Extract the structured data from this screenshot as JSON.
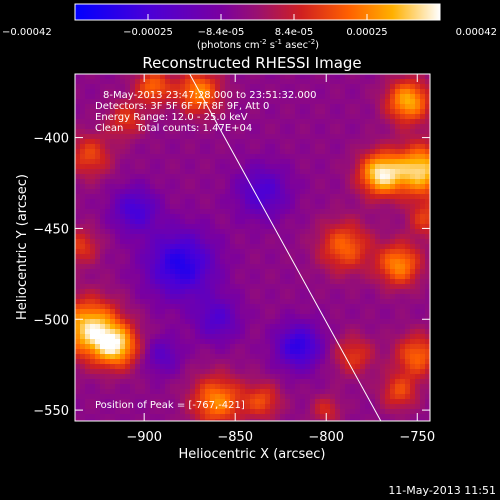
{
  "chart_data": {
    "type": "heatmap",
    "title": "Reconstructed RHESSI Image",
    "xlabel": "Heliocentric X (arcsec)",
    "ylabel": "Heliocentric Y (arcsec)",
    "xlim": [
      -938,
      -743
    ],
    "ylim": [
      -556,
      -365
    ],
    "xticks": [
      -900,
      -850,
      -800,
      -750
    ],
    "yticks": [
      -400,
      -450,
      -500,
      -550
    ],
    "colorbar": {
      "ticks": [
        "-0.00042",
        "-0.00025",
        "-8.4e-05",
        "8.4e-05",
        "0.00025",
        "0.00042"
      ],
      "units": "(photons cm",
      "units_exp1": "-2",
      "units_mid": " s",
      "units_exp2": "-1",
      "units_mid2": " asec",
      "units_exp3": "-2",
      "units_end": ")",
      "range": [
        -0.00042,
        0.00042
      ]
    },
    "annotations": [
      "8-May-2013 23:47:28.000 to 23:51:32.000",
      "Detectors: 3F 5F 6F 7F 8F 9F, Att 0",
      "Energy Range: 12.0 - 25.0 keV",
      "Clean    Total counts: 1.47E+04"
    ],
    "peak_label": "Position of Peak = [-767,-421]",
    "limb_line": [
      [
        -875,
        -365
      ],
      [
        -770,
        -556
      ]
    ],
    "bright_regions": [
      {
        "x": -930,
        "y": -505,
        "r": 16,
        "v": 0.0004
      },
      {
        "x": -915,
        "y": -515,
        "r": 12,
        "v": 0.00035
      },
      {
        "x": -860,
        "y": -545,
        "r": 14,
        "v": 0.0003
      },
      {
        "x": -770,
        "y": -420,
        "r": 12,
        "v": 0.00042
      },
      {
        "x": -748,
        "y": -418,
        "r": 14,
        "v": 0.0004
      },
      {
        "x": -755,
        "y": -380,
        "r": 12,
        "v": 0.00035
      },
      {
        "x": -870,
        "y": -375,
        "r": 12,
        "v": 0.0003
      },
      {
        "x": -895,
        "y": -372,
        "r": 10,
        "v": 0.00025
      },
      {
        "x": -790,
        "y": -460,
        "r": 14,
        "v": 0.00025
      },
      {
        "x": -760,
        "y": -470,
        "r": 12,
        "v": 0.0003
      },
      {
        "x": -785,
        "y": -520,
        "r": 11,
        "v": 0.00018
      },
      {
        "x": -750,
        "y": -520,
        "r": 12,
        "v": 0.00025
      },
      {
        "x": -760,
        "y": -540,
        "r": 10,
        "v": 0.0002
      },
      {
        "x": -930,
        "y": -410,
        "r": 12,
        "v": 0.0002
      },
      {
        "x": -935,
        "y": -460,
        "r": 10,
        "v": 0.00018
      },
      {
        "x": -910,
        "y": -390,
        "r": 10,
        "v": 0.00018
      },
      {
        "x": -835,
        "y": -545,
        "r": 10,
        "v": 0.0002
      },
      {
        "x": -800,
        "y": -550,
        "r": 8,
        "v": 0.00015
      },
      {
        "x": -745,
        "y": -445,
        "r": 10,
        "v": 0.00018
      }
    ],
    "dim_regions": [
      {
        "x": -880,
        "y": -470,
        "r": 18,
        "v": -0.0003
      },
      {
        "x": -815,
        "y": -515,
        "r": 12,
        "v": -0.00028
      },
      {
        "x": -835,
        "y": -430,
        "r": 14,
        "v": -0.0002
      },
      {
        "x": -905,
        "y": -440,
        "r": 12,
        "v": -0.00022
      },
      {
        "x": -860,
        "y": -500,
        "r": 12,
        "v": -0.00018
      },
      {
        "x": -890,
        "y": -520,
        "r": 10,
        "v": -0.00015
      }
    ]
  },
  "footer": {
    "timestamp": "11-May-2013 11:51"
  }
}
